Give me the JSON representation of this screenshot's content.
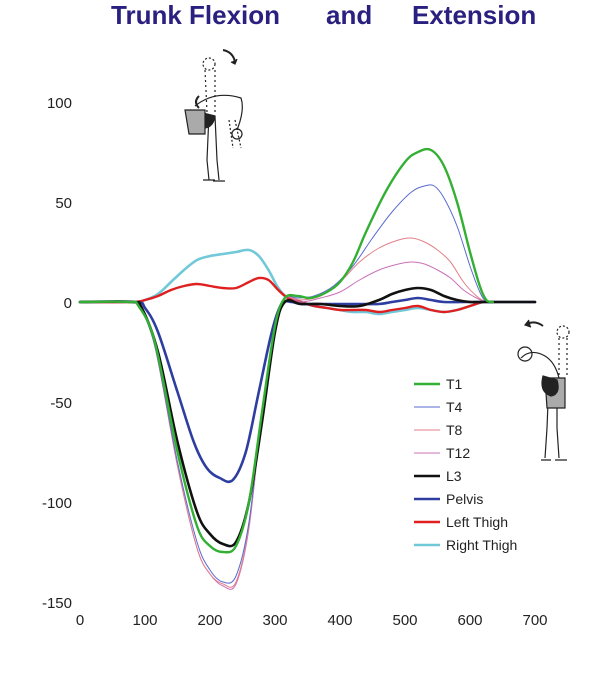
{
  "title_parts": [
    "Trunk Flexion",
    "and",
    "Extension"
  ],
  "colors": {
    "title": "#2a2080",
    "T1": "#33b033",
    "T4": "#5a6bcf",
    "T8": "#e08088",
    "T12": "#cc70b8",
    "L3": "#111111",
    "Pelvis": "#2e3ea0",
    "Left Thigh": "#e02020",
    "Right Thigh": "#70c8d8"
  },
  "chart_data": {
    "type": "line",
    "title": "Trunk Flexion and Extension",
    "xlabel": "",
    "ylabel": "",
    "xlim": [
      0,
      700
    ],
    "ylim": [
      -150,
      100
    ],
    "x_ticks": [
      "0",
      "100",
      "200",
      "300",
      "400",
      "500",
      "600",
      "700"
    ],
    "y_ticks": [
      "100",
      "50",
      "0",
      "-50",
      "-100",
      "-150"
    ],
    "legend_position": "lower-right",
    "grid": false,
    "series": [
      {
        "name": "T1",
        "points": [
          [
            0,
            0
          ],
          [
            75,
            0
          ],
          [
            90,
            -2
          ],
          [
            115,
            -20
          ],
          [
            150,
            -75
          ],
          [
            180,
            -112
          ],
          [
            200,
            -122
          ],
          [
            220,
            -125
          ],
          [
            240,
            -122
          ],
          [
            260,
            -100
          ],
          [
            280,
            -55
          ],
          [
            300,
            -12
          ],
          [
            315,
            2
          ],
          [
            335,
            3
          ],
          [
            355,
            2
          ],
          [
            380,
            5
          ],
          [
            400,
            10
          ],
          [
            420,
            20
          ],
          [
            440,
            35
          ],
          [
            470,
            55
          ],
          [
            500,
            70
          ],
          [
            520,
            75
          ],
          [
            540,
            76
          ],
          [
            560,
            68
          ],
          [
            580,
            50
          ],
          [
            600,
            25
          ],
          [
            615,
            8
          ],
          [
            625,
            1
          ],
          [
            635,
            0
          ]
        ]
      },
      {
        "name": "T4",
        "points": [
          [
            0,
            0
          ],
          [
            75,
            0
          ],
          [
            90,
            -2
          ],
          [
            115,
            -22
          ],
          [
            150,
            -80
          ],
          [
            180,
            -120
          ],
          [
            200,
            -134
          ],
          [
            220,
            -140
          ],
          [
            240,
            -137
          ],
          [
            260,
            -110
          ],
          [
            280,
            -55
          ],
          [
            300,
            -12
          ],
          [
            315,
            2
          ],
          [
            335,
            2
          ],
          [
            360,
            3
          ],
          [
            390,
            8
          ],
          [
            420,
            18
          ],
          [
            450,
            32
          ],
          [
            480,
            45
          ],
          [
            510,
            55
          ],
          [
            530,
            58
          ],
          [
            545,
            58
          ],
          [
            560,
            52
          ],
          [
            580,
            38
          ],
          [
            600,
            18
          ],
          [
            615,
            5
          ],
          [
            625,
            0
          ],
          [
            635,
            0
          ]
        ]
      },
      {
        "name": "T8",
        "points": [
          [
            0,
            0
          ],
          [
            75,
            0
          ],
          [
            90,
            -2
          ],
          [
            115,
            -22
          ],
          [
            150,
            -82
          ],
          [
            180,
            -123
          ],
          [
            200,
            -136
          ],
          [
            220,
            -141
          ],
          [
            240,
            -140
          ],
          [
            260,
            -112
          ],
          [
            280,
            -56
          ],
          [
            300,
            -12
          ],
          [
            315,
            2
          ],
          [
            340,
            1
          ],
          [
            370,
            3
          ],
          [
            400,
            10
          ],
          [
            430,
            20
          ],
          [
            460,
            27
          ],
          [
            490,
            31
          ],
          [
            510,
            32
          ],
          [
            530,
            30
          ],
          [
            550,
            26
          ],
          [
            570,
            20
          ],
          [
            590,
            10
          ],
          [
            610,
            3
          ],
          [
            625,
            0
          ],
          [
            635,
            0
          ]
        ]
      },
      {
        "name": "T12",
        "points": [
          [
            0,
            0
          ],
          [
            75,
            0
          ],
          [
            90,
            -2
          ],
          [
            115,
            -22
          ],
          [
            150,
            -82
          ],
          [
            180,
            -123
          ],
          [
            200,
            -136
          ],
          [
            220,
            -142
          ],
          [
            240,
            -141
          ],
          [
            260,
            -113
          ],
          [
            280,
            -56
          ],
          [
            300,
            -12
          ],
          [
            315,
            2
          ],
          [
            340,
            0
          ],
          [
            370,
            2
          ],
          [
            400,
            5
          ],
          [
            430,
            11
          ],
          [
            460,
            16
          ],
          [
            490,
            19
          ],
          [
            510,
            20
          ],
          [
            530,
            19
          ],
          [
            550,
            16
          ],
          [
            570,
            12
          ],
          [
            590,
            6
          ],
          [
            610,
            2
          ],
          [
            625,
            0
          ],
          [
            635,
            0
          ]
        ]
      },
      {
        "name": "L3",
        "points": [
          [
            0,
            0
          ],
          [
            80,
            0
          ],
          [
            95,
            -3
          ],
          [
            120,
            -25
          ],
          [
            150,
            -70
          ],
          [
            180,
            -105
          ],
          [
            200,
            -116
          ],
          [
            220,
            -121
          ],
          [
            240,
            -120
          ],
          [
            260,
            -100
          ],
          [
            280,
            -60
          ],
          [
            300,
            -15
          ],
          [
            315,
            0
          ],
          [
            340,
            -1
          ],
          [
            370,
            -1
          ],
          [
            400,
            -2
          ],
          [
            430,
            -2
          ],
          [
            460,
            1
          ],
          [
            480,
            4
          ],
          [
            500,
            6
          ],
          [
            520,
            7
          ],
          [
            540,
            6
          ],
          [
            560,
            3
          ],
          [
            580,
            1
          ],
          [
            600,
            0
          ],
          [
            620,
            0
          ],
          [
            700,
            0
          ]
        ]
      },
      {
        "name": "Pelvis",
        "points": [
          [
            0,
            0
          ],
          [
            85,
            0
          ],
          [
            100,
            -3
          ],
          [
            120,
            -15
          ],
          [
            150,
            -45
          ],
          [
            175,
            -70
          ],
          [
            195,
            -83
          ],
          [
            215,
            -88
          ],
          [
            235,
            -89
          ],
          [
            255,
            -75
          ],
          [
            275,
            -45
          ],
          [
            295,
            -15
          ],
          [
            310,
            -1
          ],
          [
            325,
            0
          ],
          [
            340,
            -1
          ],
          [
            370,
            -1
          ],
          [
            400,
            -1
          ],
          [
            430,
            -1
          ],
          [
            460,
            -1
          ],
          [
            480,
            0
          ],
          [
            500,
            1
          ],
          [
            520,
            2
          ],
          [
            540,
            1
          ],
          [
            560,
            0
          ],
          [
            590,
            0
          ],
          [
            620,
            0
          ],
          [
            700,
            0
          ]
        ]
      },
      {
        "name": "Left Thigh",
        "points": [
          [
            0,
            0
          ],
          [
            80,
            0
          ],
          [
            100,
            1
          ],
          [
            120,
            3
          ],
          [
            140,
            6
          ],
          [
            160,
            8
          ],
          [
            180,
            9
          ],
          [
            200,
            8
          ],
          [
            220,
            7
          ],
          [
            240,
            7
          ],
          [
            260,
            10
          ],
          [
            275,
            12
          ],
          [
            290,
            11
          ],
          [
            305,
            6
          ],
          [
            320,
            2
          ],
          [
            340,
            0
          ],
          [
            360,
            -2
          ],
          [
            380,
            -3
          ],
          [
            400,
            -4
          ],
          [
            420,
            -4
          ],
          [
            440,
            -4
          ],
          [
            460,
            -5
          ],
          [
            480,
            -4
          ],
          [
            500,
            -3
          ],
          [
            520,
            -2
          ],
          [
            540,
            -4
          ],
          [
            560,
            -5
          ],
          [
            580,
            -4
          ],
          [
            600,
            -2
          ],
          [
            620,
            0
          ],
          [
            635,
            0
          ]
        ]
      },
      {
        "name": "Right Thigh",
        "points": [
          [
            0,
            0
          ],
          [
            80,
            0
          ],
          [
            100,
            1
          ],
          [
            120,
            4
          ],
          [
            140,
            10
          ],
          [
            160,
            16
          ],
          [
            180,
            21
          ],
          [
            200,
            23
          ],
          [
            220,
            24
          ],
          [
            240,
            25
          ],
          [
            260,
            26
          ],
          [
            275,
            23
          ],
          [
            290,
            16
          ],
          [
            305,
            7
          ],
          [
            320,
            2
          ],
          [
            340,
            0
          ],
          [
            360,
            -2
          ],
          [
            380,
            -3
          ],
          [
            400,
            -4
          ],
          [
            420,
            -5
          ],
          [
            440,
            -5
          ],
          [
            460,
            -6
          ],
          [
            480,
            -5
          ],
          [
            500,
            -4
          ],
          [
            520,
            -3
          ],
          [
            540,
            -4
          ],
          [
            560,
            -5
          ],
          [
            580,
            -4
          ],
          [
            600,
            -2
          ],
          [
            620,
            0
          ],
          [
            635,
            0
          ]
        ]
      }
    ],
    "legend": [
      "T1",
      "T4",
      "T8",
      "T12",
      "L3",
      "Pelvis",
      "Left Thigh",
      "Right Thigh"
    ]
  }
}
